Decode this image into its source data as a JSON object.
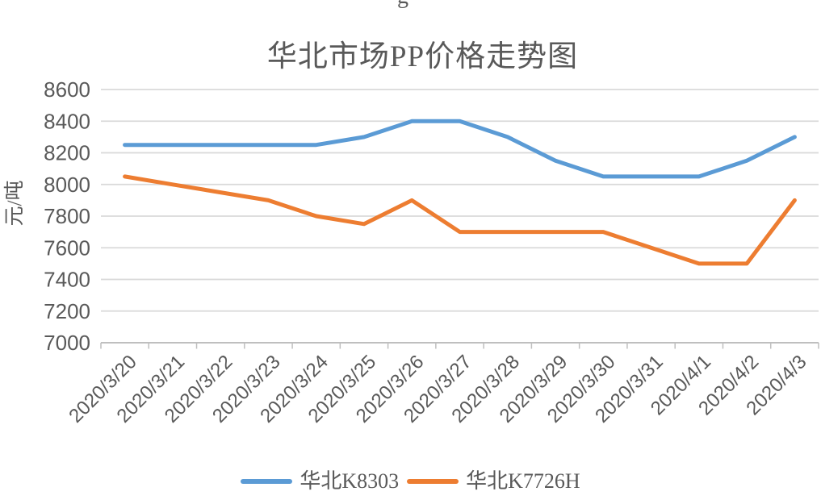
{
  "page": {
    "top_text_fragment": "g"
  },
  "style": {
    "text_color": "#595959",
    "gridline_color": "#D9D9D9",
    "axis_color": "#BFBFBF",
    "background": "#FFFFFF"
  },
  "chart_data": {
    "type": "line",
    "title": "华北市场PP价格走势图",
    "xlabel": "",
    "ylabel": "元/吨",
    "ylim": [
      7000,
      8600
    ],
    "yticks": [
      8600,
      8400,
      8200,
      8000,
      7800,
      7600,
      7400,
      7200,
      7000
    ],
    "grid": true,
    "legend_position": "bottom",
    "categories": [
      "2020/3/20",
      "2020/3/21",
      "2020/3/22",
      "2020/3/23",
      "2020/3/24",
      "2020/3/25",
      "2020/3/26",
      "2020/3/27",
      "2020/3/28",
      "2020/3/29",
      "2020/3/30",
      "2020/3/31",
      "2020/4/1",
      "2020/4/2",
      "2020/4/3"
    ],
    "series": [
      {
        "name": "华北K8303",
        "color": "#5B9BD5",
        "values": [
          8250,
          8250,
          8250,
          8250,
          8250,
          8300,
          8400,
          8400,
          8300,
          8150,
          8050,
          8050,
          8050,
          8150,
          8300
        ]
      },
      {
        "name": "华北K7726H",
        "color": "#ED7D31",
        "values": [
          8050,
          8000,
          7950,
          7900,
          7800,
          7750,
          7900,
          7700,
          7700,
          7700,
          7700,
          7600,
          7500,
          7500,
          7900
        ]
      }
    ]
  }
}
